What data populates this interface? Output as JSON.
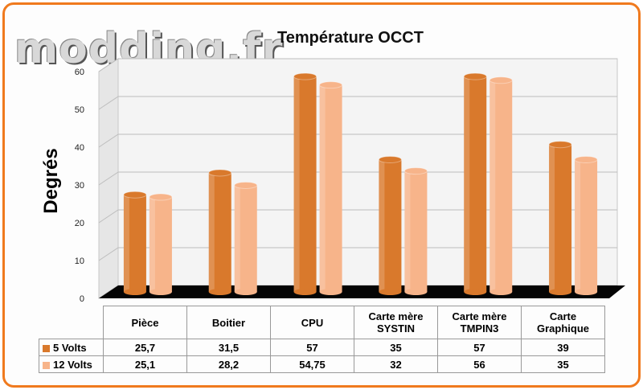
{
  "logo_text": "modding.fr",
  "chart_data": {
    "type": "bar",
    "title": "Température OCCT",
    "ylabel": "Degrés",
    "ylim": [
      0,
      60
    ],
    "yticks": [
      0,
      10,
      20,
      30,
      40,
      50,
      60
    ],
    "categories": [
      "Pièce",
      "Boitier",
      "CPU",
      "Carte mère SYSTIN",
      "Carte mère TMPIN3",
      "Carte Graphique"
    ],
    "category_lines": [
      [
        "Pièce"
      ],
      [
        "Boitier"
      ],
      [
        "CPU"
      ],
      [
        "Carte mère",
        "SYSTIN"
      ],
      [
        "Carte mère",
        "TMPIN3"
      ],
      [
        "Carte",
        "Graphique"
      ]
    ],
    "series": [
      {
        "name": "5 Volts",
        "color": "#d9792c",
        "values": [
          25.7,
          31.5,
          57,
          35,
          57,
          39
        ],
        "labels": [
          "25,7",
          "31,5",
          "57",
          "35",
          "57",
          "39"
        ]
      },
      {
        "name": "12 Volts",
        "color": "#f7b48a",
        "values": [
          25.1,
          28.2,
          54.75,
          32,
          56,
          35
        ],
        "labels": [
          "25,1",
          "28,2",
          "54,75",
          "32",
          "56",
          "35"
        ]
      }
    ],
    "grid": true,
    "legend": "table-bottom"
  }
}
